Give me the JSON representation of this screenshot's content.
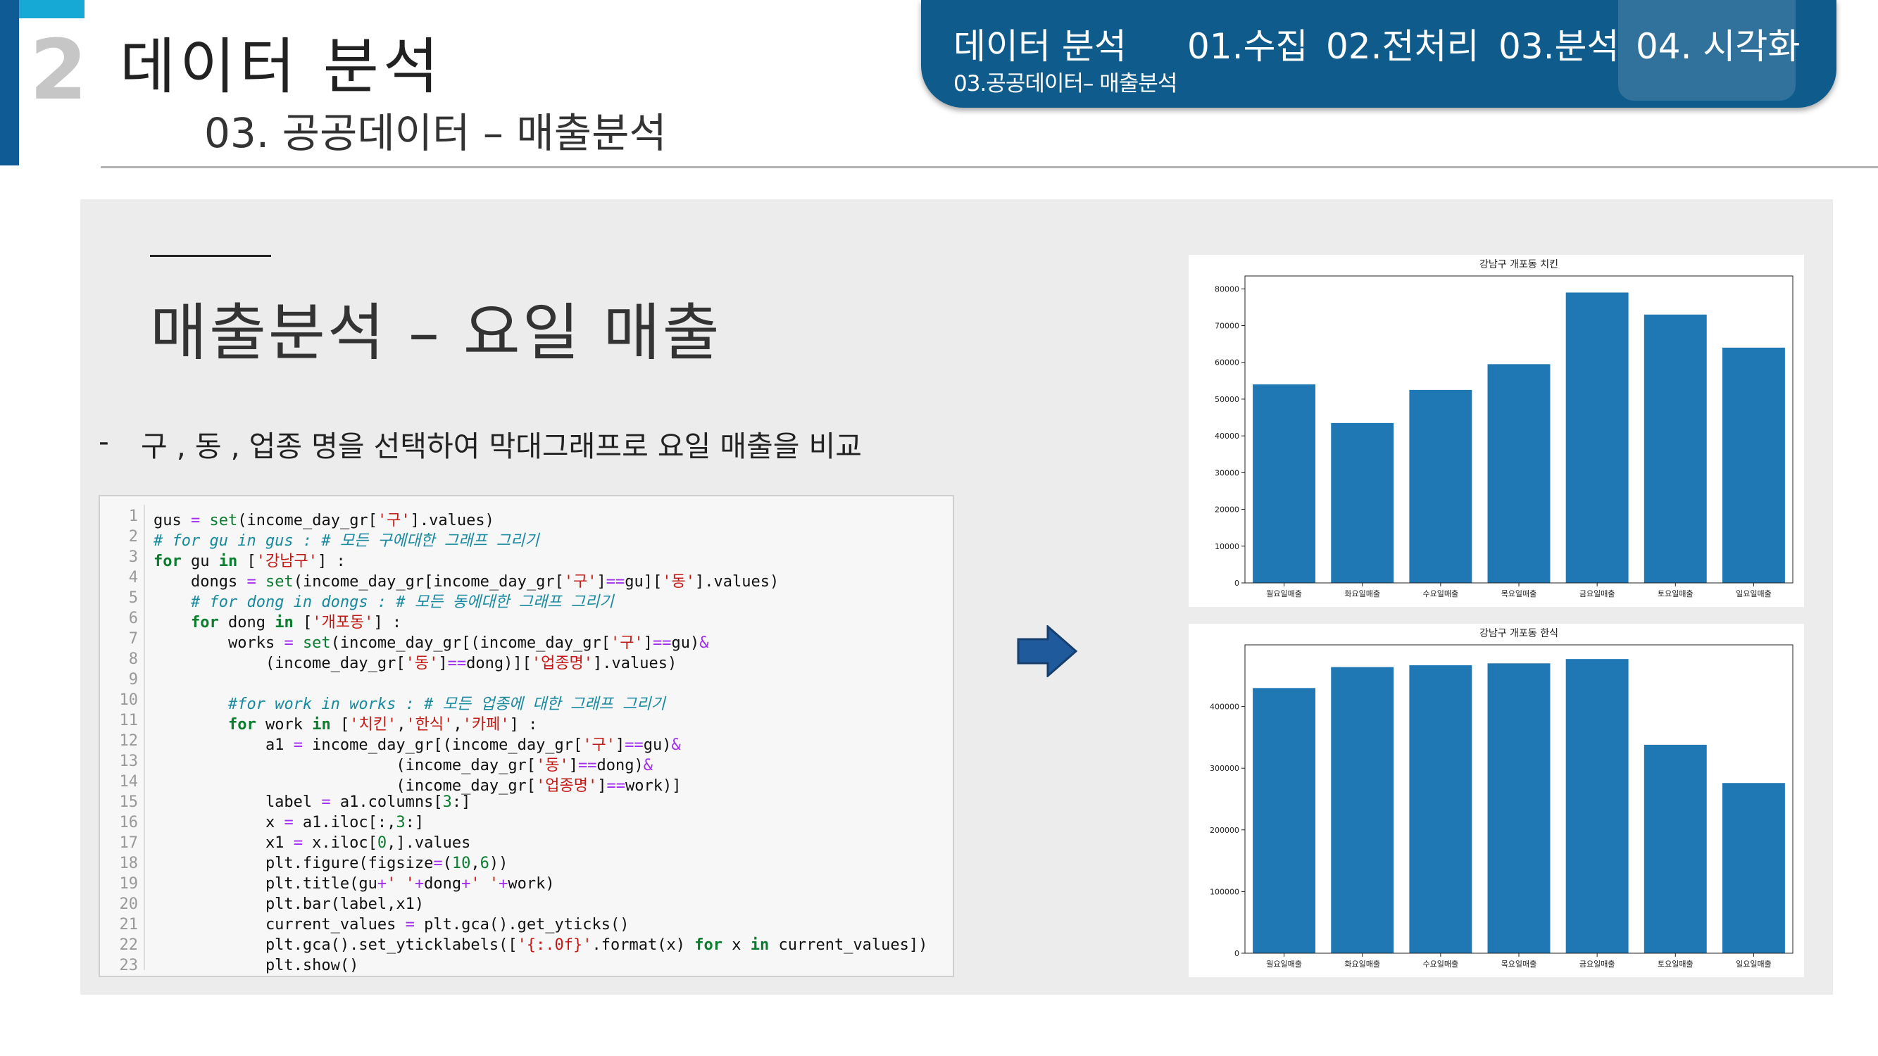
{
  "header": {
    "section_number": "2",
    "title": "데이터  분석",
    "subtitle": "03. 공공데이터 – 매출분석"
  },
  "top_nav": {
    "current_section": "데이터 분석",
    "breadcrumb": "03.공공데이터– 매출분석",
    "tabs": [
      "01.수집",
      "02.전처리",
      "03.분석",
      "04. 시각화"
    ],
    "active_tab": "04. 시각화"
  },
  "content": {
    "title": "매출분석 – 요일 매출",
    "bullet_dash": "-",
    "bullet_text": "구 , 동 , 업종 명을 선택하여 막대그래프로 요일 매출을 비교"
  },
  "code": {
    "line_numbers": [
      "1",
      "2",
      "3",
      "4",
      "5",
      "6",
      "7",
      "8",
      "9",
      "10",
      "11",
      "12",
      "13",
      "14",
      "15",
      "16",
      "17",
      "18",
      "19",
      "20",
      "21",
      "22",
      "23"
    ]
  },
  "colors": {
    "accent_dark": "#0e5b96",
    "accent_light": "#16a9d6",
    "nav_bg": "#0e5b8c",
    "bar": "#1f77b4",
    "arrow": "#1f5a9c"
  },
  "icons": {
    "arrow": "right-arrow-icon"
  },
  "chart_data": [
    {
      "type": "bar",
      "title": "강남구 개포동 치킨",
      "categories": [
        "월요일매출",
        "화요일매출",
        "수요일매출",
        "목요일매출",
        "금요일매출",
        "토요일매출",
        "일요일매출"
      ],
      "values": [
        54000,
        43500,
        52500,
        59500,
        79000,
        73000,
        64000
      ],
      "ylim": [
        0,
        83500
      ],
      "yticks": [
        0,
        10000,
        20000,
        30000,
        40000,
        50000,
        60000,
        70000,
        80000
      ],
      "ytick_labels": [
        "0",
        "10000",
        "20000",
        "30000",
        "40000",
        "50000",
        "60000",
        "70000",
        "80000"
      ],
      "grid": false,
      "legend": "none"
    },
    {
      "type": "bar",
      "title": "강남구 개포동 한식",
      "categories": [
        "월요일매출",
        "화요일매출",
        "수요일매출",
        "목요일매출",
        "금요일매출",
        "토요일매출",
        "일요일매출"
      ],
      "values": [
        430000,
        464000,
        467000,
        470000,
        477000,
        338000,
        276000
      ],
      "ylim": [
        0,
        500000
      ],
      "yticks": [
        0,
        100000,
        200000,
        300000,
        400000
      ],
      "ytick_labels": [
        "0",
        "100000",
        "200000",
        "300000",
        "400000"
      ],
      "grid": false,
      "legend": "none"
    }
  ]
}
